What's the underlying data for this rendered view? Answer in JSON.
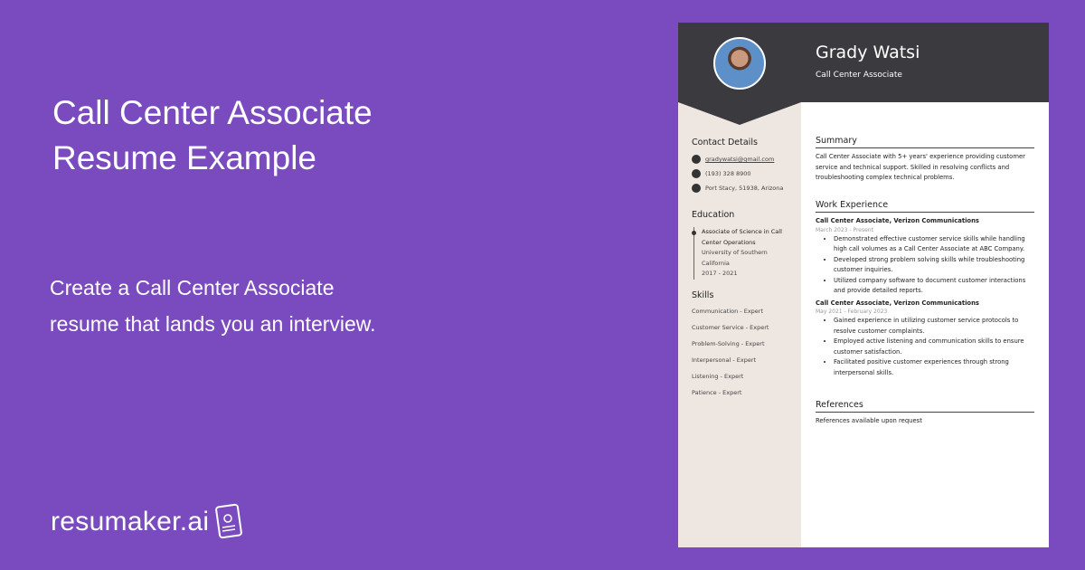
{
  "promo": {
    "title": "Call Center Associate Resume Example",
    "subtitle": "Create a Call Center Associate resume that lands you an interview.",
    "logo": "resumaker.ai"
  },
  "colors": {
    "background": "#7a4bbe",
    "header": "#3a3a3f",
    "sidebar": "#ede6e1"
  },
  "resume": {
    "name": "Grady Watsi",
    "role": "Call Center Associate",
    "contact": {
      "heading": "Contact Details",
      "email": "gradywatsi@gmail.com",
      "phone": "(193) 328 8900",
      "address": "Port Stacy, 51938, Arizona"
    },
    "education": {
      "heading": "Education",
      "degree": "Associate of Science in Call Center Operations",
      "school": "University of Southern California",
      "years": "2017 - 2021"
    },
    "skills": {
      "heading": "Skills",
      "items": [
        "Communication - Expert",
        "Customer Service - Expert",
        "Problem-Solving - Expert",
        "Interpersonal - Expert",
        "Listening - Expert",
        "Patience - Expert"
      ]
    },
    "summary": {
      "heading": "Summary",
      "text": "Call Center Associate with 5+ years' experience providing customer service and technical support. Skilled in resolving conflicts and troubleshooting complex technical problems."
    },
    "work": {
      "heading": "Work Experience",
      "jobs": [
        {
          "title": "Call Center Associate, Verizon Communications",
          "dates": "March 2023 - Present",
          "bullets": [
            "Demonstrated effective customer service skills while handling high call volumes as a Call Center Associate at ABC Company.",
            "Developed strong problem solving skills while troubleshooting customer inquiries.",
            "Utilized company software to document customer interactions and provide detailed reports."
          ]
        },
        {
          "title": "Call Center Associate, Verizon Communications",
          "dates": "May 2021 - February 2023",
          "bullets": [
            "Gained experience in utilizing customer service protocols to resolve customer complaints.",
            "Employed active listening and communication skills to ensure customer satisfaction.",
            "Facilitated positive customer experiences through strong interpersonal skills."
          ]
        }
      ]
    },
    "references": {
      "heading": "References",
      "text": "References available upon request"
    }
  }
}
